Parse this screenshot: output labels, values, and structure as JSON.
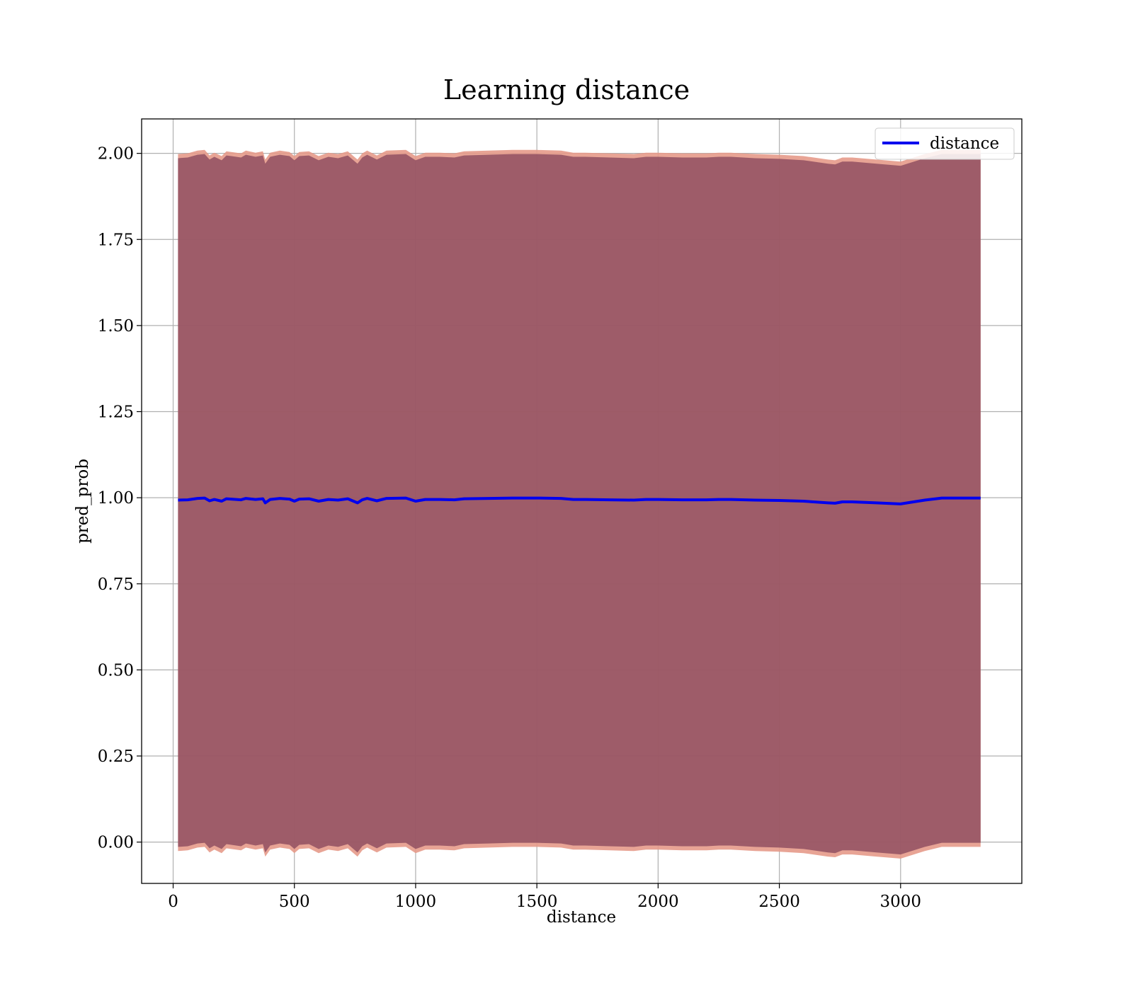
{
  "chart_data": {
    "type": "area",
    "title": "Learning distance",
    "xlabel": "distance",
    "ylabel": "pred_prob",
    "xlim": [
      -130,
      3500
    ],
    "ylim": [
      -0.12,
      2.1
    ],
    "xticks": [
      0,
      500,
      1000,
      1500,
      2000,
      2500,
      3000
    ],
    "xtick_labels": [
      "0",
      "500",
      "1000",
      "1500",
      "2000",
      "2500",
      "3000"
    ],
    "yticks": [
      0.0,
      0.25,
      0.5,
      0.75,
      1.0,
      1.25,
      1.5,
      1.75,
      2.0
    ],
    "ytick_labels": [
      "0.00",
      "0.25",
      "0.50",
      "0.75",
      "1.00",
      "1.25",
      "1.50",
      "1.75",
      "2.00"
    ],
    "grid": true,
    "legend": {
      "position": "top-right",
      "entries": [
        "distance"
      ]
    },
    "colors": {
      "line": "#0000ee",
      "band_outer": "#e59a8a",
      "band_inner": "#8b4a5e"
    },
    "x": [
      20,
      60,
      100,
      130,
      150,
      170,
      200,
      220,
      240,
      280,
      300,
      340,
      370,
      380,
      400,
      440,
      480,
      500,
      520,
      560,
      600,
      640,
      680,
      720,
      760,
      780,
      800,
      840,
      880,
      960,
      1000,
      1040,
      1100,
      1160,
      1200,
      1300,
      1400,
      1500,
      1600,
      1650,
      1700,
      1800,
      1900,
      1950,
      2000,
      2100,
      2200,
      2250,
      2300,
      2400,
      2500,
      2600,
      2700,
      2730,
      2760,
      2800,
      2900,
      3000,
      3100,
      3170,
      3250,
      3330
    ],
    "series": [
      {
        "name": "distance",
        "values": [
          0.993,
          0.994,
          0.998,
          0.999,
          0.991,
          0.995,
          0.99,
          0.997,
          0.996,
          0.994,
          0.998,
          0.995,
          0.997,
          0.985,
          0.995,
          0.998,
          0.996,
          0.99,
          0.996,
          0.997,
          0.99,
          0.995,
          0.993,
          0.997,
          0.985,
          0.994,
          0.998,
          0.991,
          0.998,
          0.999,
          0.99,
          0.995,
          0.995,
          0.994,
          0.997,
          0.998,
          0.999,
          0.999,
          0.998,
          0.995,
          0.995,
          0.994,
          0.993,
          0.995,
          0.995,
          0.994,
          0.994,
          0.995,
          0.995,
          0.993,
          0.992,
          0.99,
          0.985,
          0.984,
          0.988,
          0.988,
          0.985,
          0.982,
          0.993,
          0.999,
          0.999,
          0.999
        ]
      }
    ]
  }
}
